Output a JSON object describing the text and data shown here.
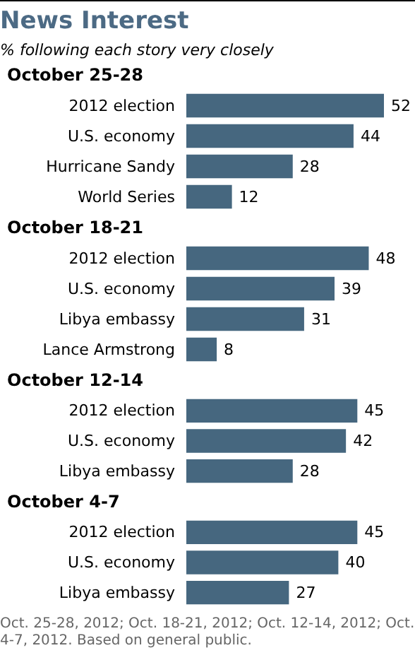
{
  "chart_data": [
    {
      "type": "other",
      "title": "News Interest",
      "subtitle": "% following each story very closely"
    },
    {
      "type": "bar",
      "orientation": "horizontal",
      "title": "October 25-28",
      "categories": [
        "2012 election",
        "U.S. economy",
        "Hurricane Sandy",
        "World Series"
      ],
      "values": [
        52,
        44,
        28,
        12
      ],
      "color": "#46677f",
      "data_labels": true
    },
    {
      "type": "bar",
      "orientation": "horizontal",
      "title": "October 18-21",
      "categories": [
        "2012 election",
        "U.S. economy",
        "Libya embassy",
        "Lance Armstrong"
      ],
      "values": [
        48,
        39,
        31,
        8
      ],
      "color": "#46677f",
      "data_labels": true
    },
    {
      "type": "bar",
      "orientation": "horizontal",
      "title": "October 12-14",
      "categories": [
        "2012 election",
        "U.S. economy",
        "Libya embassy"
      ],
      "values": [
        45,
        42,
        28
      ],
      "color": "#46677f",
      "data_labels": true
    },
    {
      "type": "bar",
      "orientation": "horizontal",
      "title": "October 4-7",
      "categories": [
        "2012 election",
        "U.S. economy",
        "Libya embassy"
      ],
      "values": [
        45,
        40,
        27
      ],
      "color": "#46677f",
      "data_labels": true,
      "annotations": [
        "Oct. 25-28, 2012; Oct. 18-21, 2012; Oct. 12-14, 2012; Oct. 4-7, 2012. Based on general public."
      ]
    }
  ]
}
